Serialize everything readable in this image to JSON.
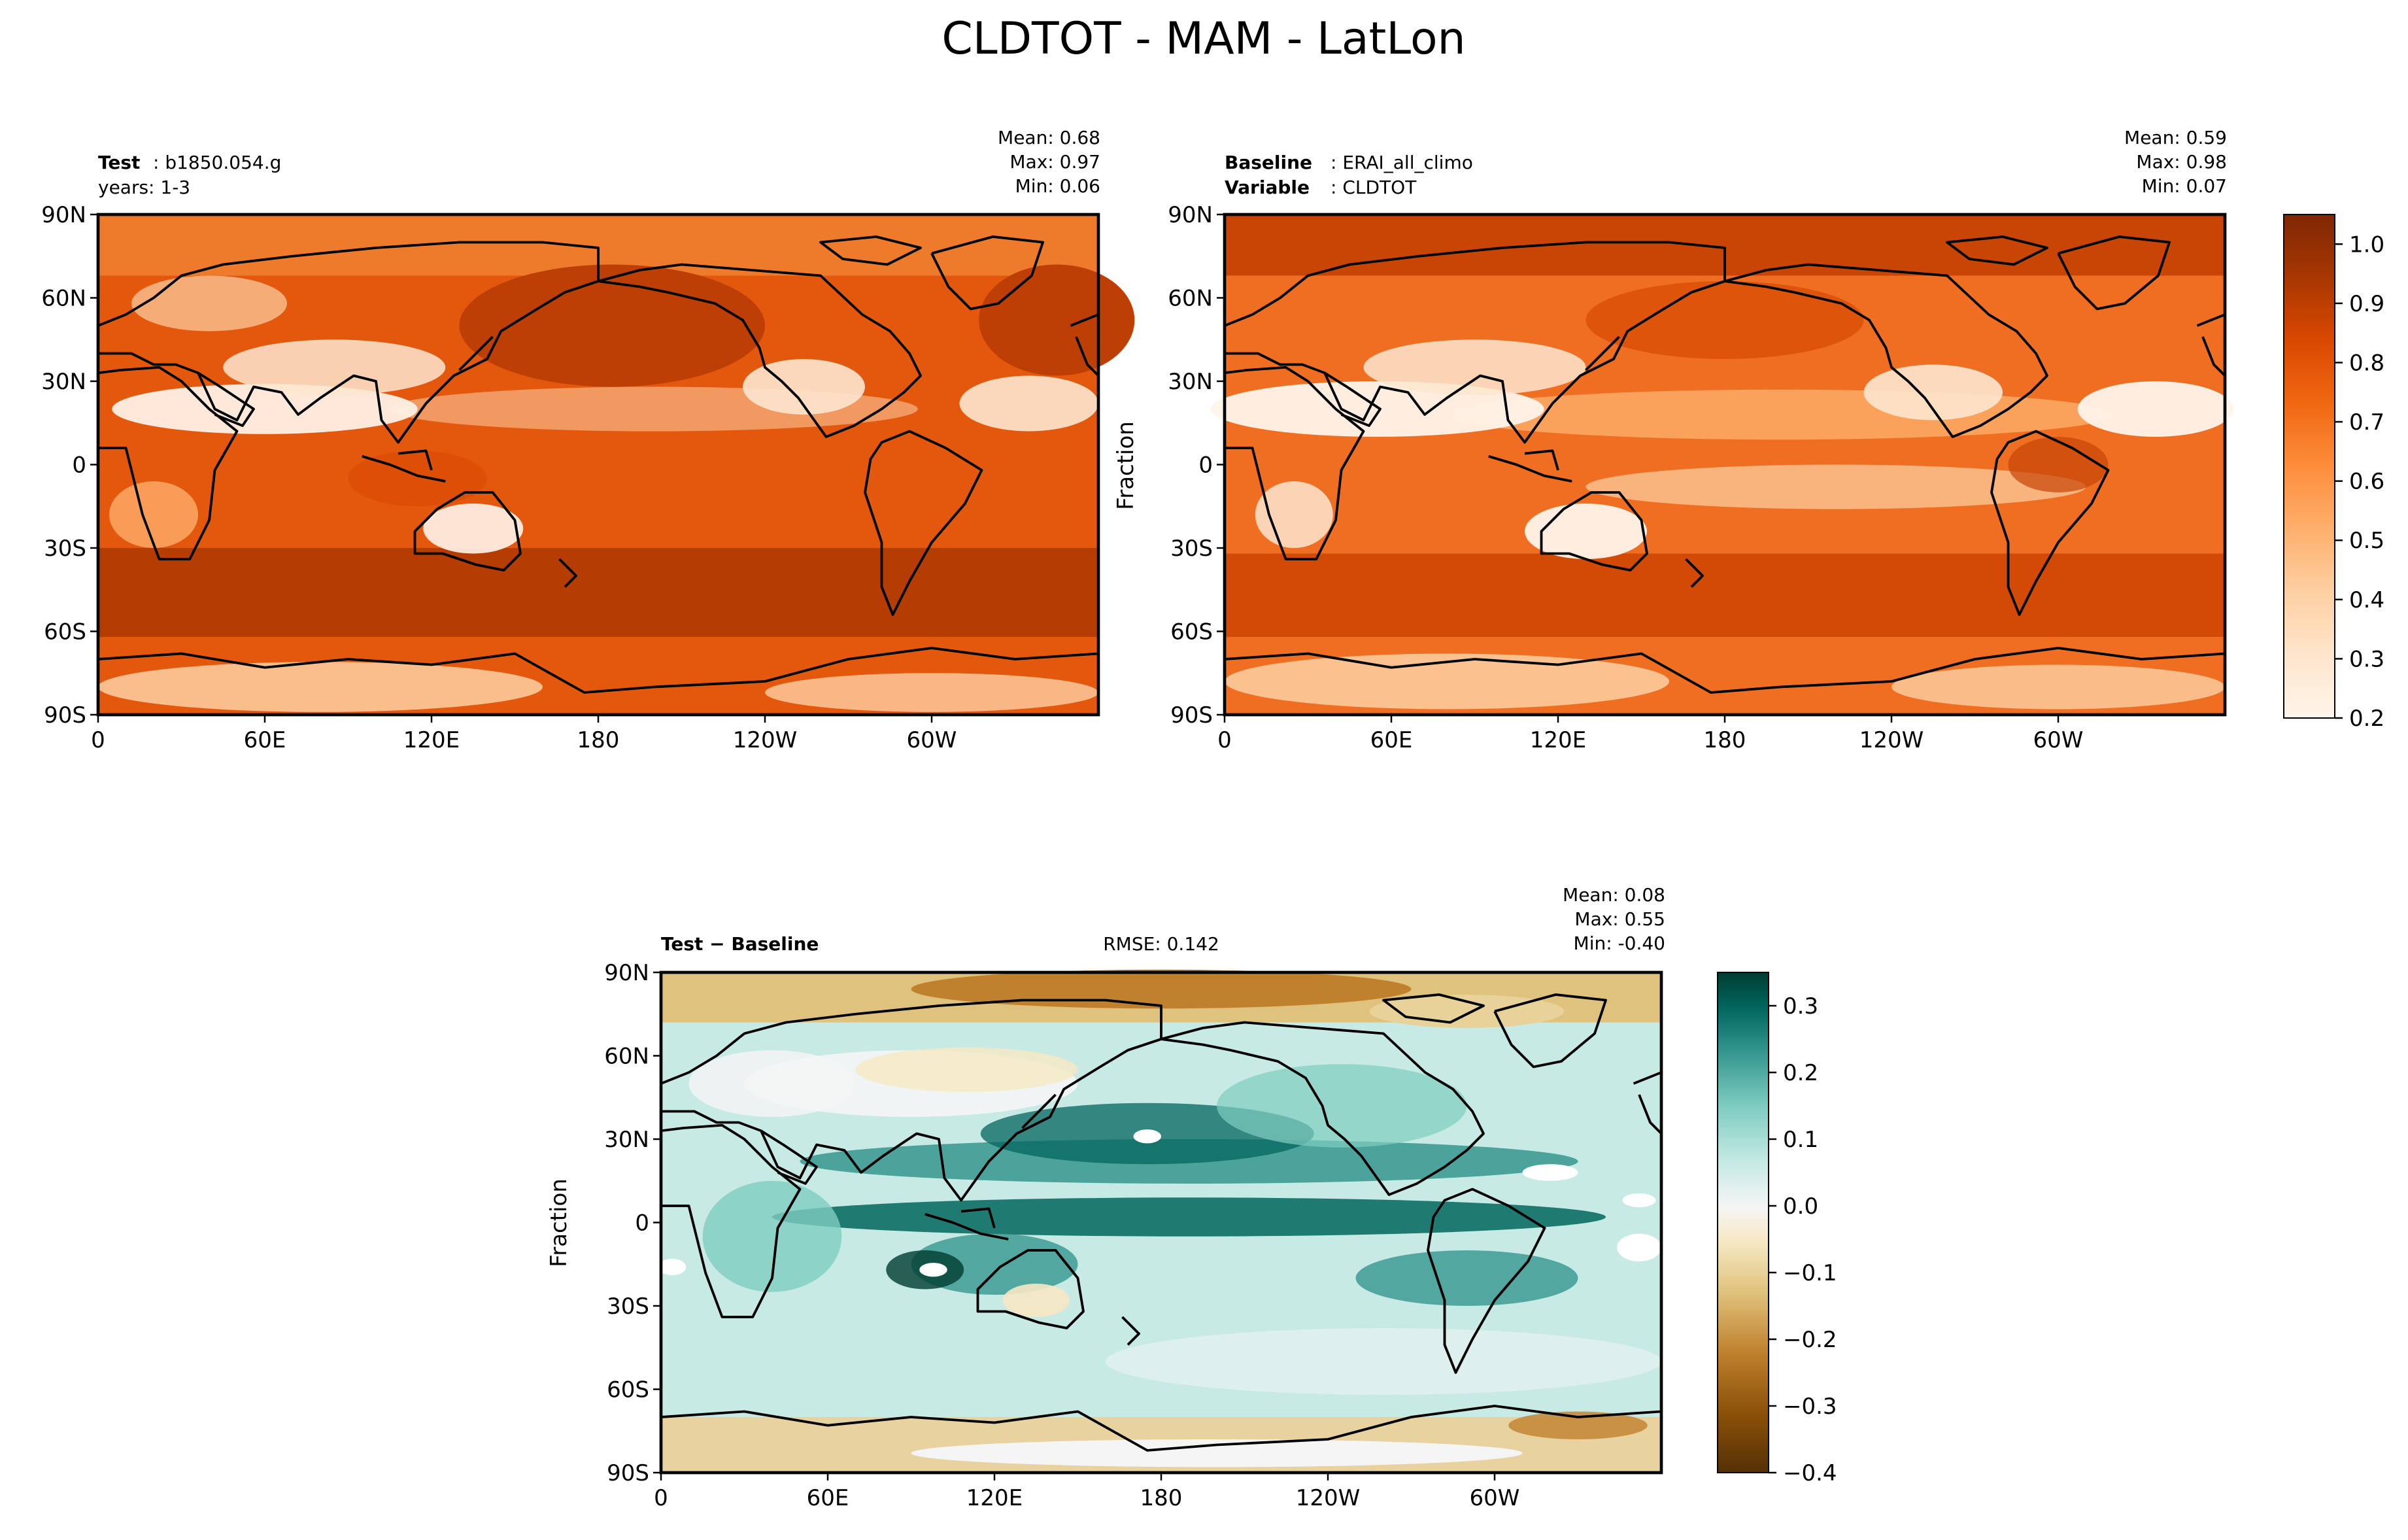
{
  "figure": {
    "title": "CLDTOT - MAM - LatLon"
  },
  "panels": {
    "test": {
      "label_bold": "Test",
      "label_value": "b1850.054.g",
      "line2": "years: 1-3",
      "stats": {
        "mean": "Mean:  0.68",
        "max": "Max:  0.97",
        "min": "Min:  0.06"
      },
      "ylabel": ""
    },
    "baseline": {
      "label_bold": "Baseline",
      "label_value": "ERAI_all_climo",
      "line2_bold": "Variable",
      "line2_value": "CLDTOT",
      "stats": {
        "mean": "Mean:  0.59",
        "max": "Max:  0.98",
        "min": "Min:  0.07"
      },
      "ylabel": "Fraction"
    },
    "diff": {
      "label": "Test − Baseline",
      "rmse": "RMSE: 0.142",
      "stats": {
        "mean": "Mean:  0.08",
        "max": "Max:  0.55",
        "min": "Min: -0.40"
      },
      "ylabel": "Fraction"
    }
  },
  "chart_data": [
    {
      "type": "heatmap",
      "name": "test",
      "xticks": [
        "0",
        "60E",
        "120E",
        "180",
        "120W",
        "60W"
      ],
      "yticks": [
        "90N",
        "60N",
        "30N",
        "0",
        "30S",
        "60S",
        "90S"
      ],
      "xlim": [
        0,
        360
      ],
      "ylim": [
        -90,
        90
      ],
      "stats": {
        "mean": 0.68,
        "max": 0.97,
        "min": 0.06
      },
      "colorscale": "Oranges",
      "vmin": 0.2,
      "vmax": 1.05
    },
    {
      "type": "heatmap",
      "name": "baseline",
      "xticks": [
        "0",
        "60E",
        "120E",
        "180",
        "120W",
        "60W"
      ],
      "yticks": [
        "90N",
        "60N",
        "30N",
        "0",
        "30S",
        "60S",
        "90S"
      ],
      "xlim": [
        0,
        360
      ],
      "ylim": [
        -90,
        90
      ],
      "stats": {
        "mean": 0.59,
        "max": 0.98,
        "min": 0.07
      },
      "colorscale": "Oranges",
      "vmin": 0.2,
      "vmax": 1.05,
      "colorbar_ticks": [
        "1.0",
        "0.9",
        "0.8",
        "0.7",
        "0.6",
        "0.5",
        "0.4",
        "0.3",
        "0.2"
      ]
    },
    {
      "type": "heatmap",
      "name": "diff",
      "xticks": [
        "0",
        "60E",
        "120E",
        "180",
        "120W",
        "60W"
      ],
      "yticks": [
        "90N",
        "60N",
        "30N",
        "0",
        "30S",
        "60S",
        "90S"
      ],
      "xlim": [
        0,
        360
      ],
      "ylim": [
        -90,
        90
      ],
      "stats": {
        "mean": 0.08,
        "max": 0.55,
        "min": -0.4,
        "rmse": 0.142
      },
      "colorscale": "BrBG",
      "vmin": -0.4,
      "vmax": 0.35,
      "colorbar_ticks": [
        "0.3",
        "0.2",
        "0.1",
        "0.0",
        "−0.1",
        "−0.2",
        "−0.3",
        "−0.4"
      ]
    }
  ],
  "colors": {
    "oranges": [
      "#fff5eb",
      "#fee6ce",
      "#fdd0a2",
      "#fdae6b",
      "#fd8d3c",
      "#f16913",
      "#d94801",
      "#a63603",
      "#7f2704"
    ],
    "brbg": [
      "#543005",
      "#8c510a",
      "#bf812d",
      "#dfc27d",
      "#f6e8c3",
      "#f5f5f5",
      "#c7eae5",
      "#80cdc1",
      "#35978f",
      "#01665e",
      "#003c30"
    ]
  }
}
